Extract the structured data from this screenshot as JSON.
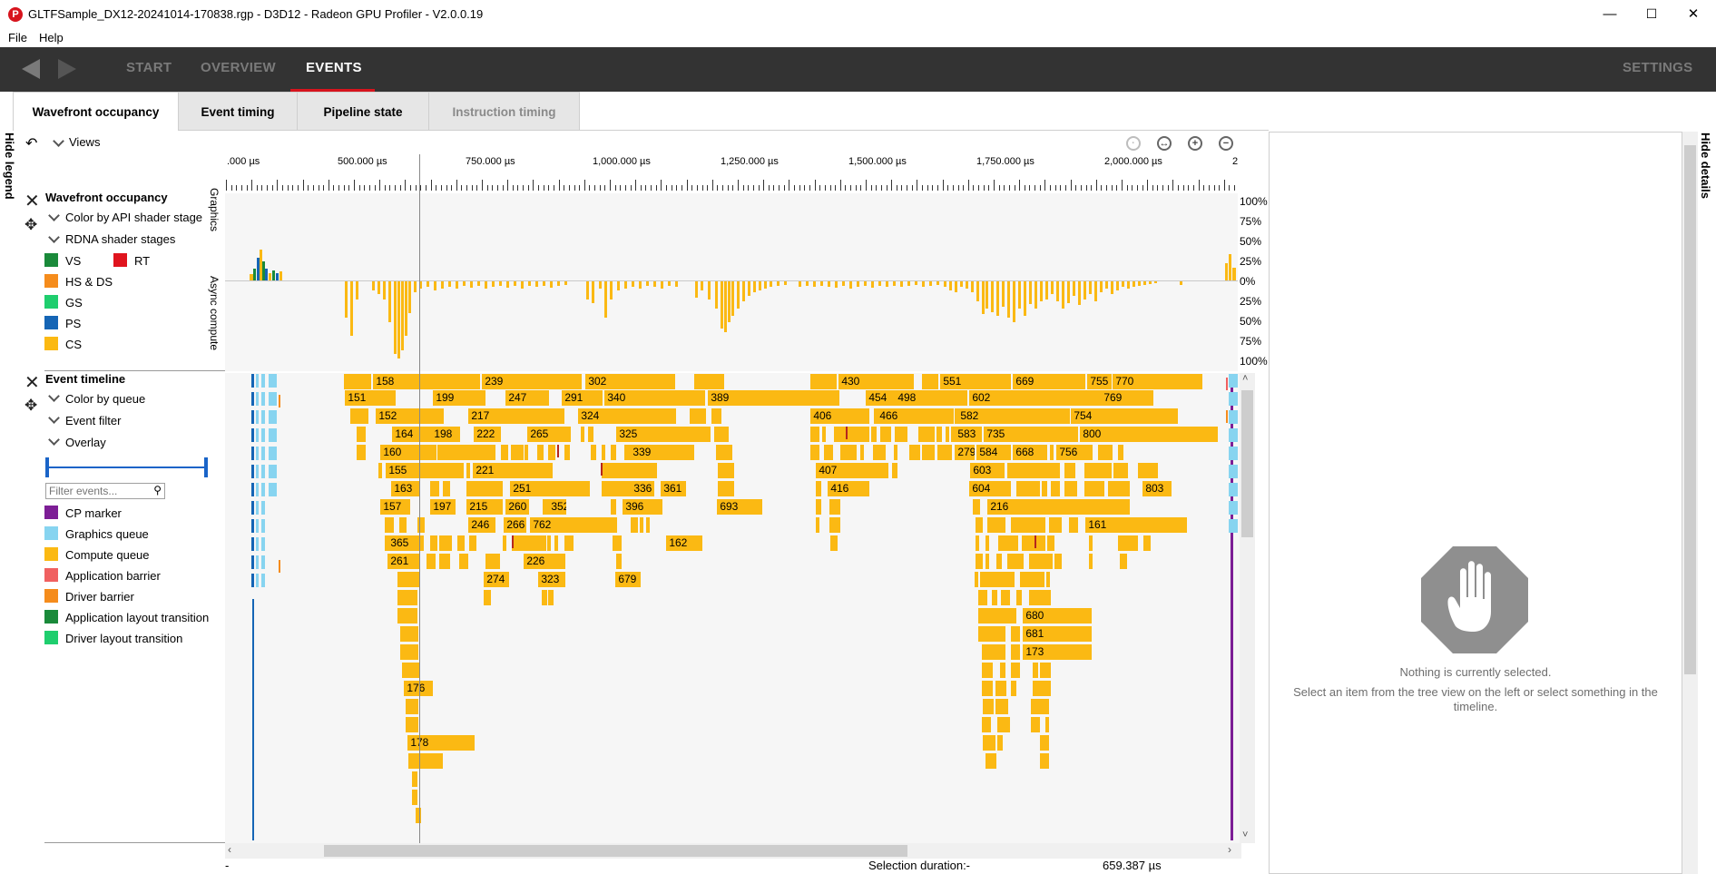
{
  "window": {
    "title": "GLTFSample_DX12-20241014-170838.rgp - D3D12 - Radeon GPU Profiler - V2.0.0.19",
    "icon_letter": "P",
    "minimize": "—",
    "maximize": "☐",
    "close": "✕"
  },
  "menu": {
    "file": "File",
    "help": "Help"
  },
  "nav": {
    "start": "START",
    "overview": "OVERVIEW",
    "events": "EVENTS",
    "settings": "SETTINGS"
  },
  "subtabs": {
    "wavefront": "Wavefront occupancy",
    "event_timing": "Event timing",
    "pipeline_state": "Pipeline state",
    "instruction_timing": "Instruction timing"
  },
  "sidebar": {
    "hide_legend": "Hide legend",
    "hide_details": "Hide details"
  },
  "views_label": "Views",
  "legend": {
    "wavefront_title": "Wavefront occupancy",
    "color_by_stage": "Color by API shader stage",
    "rdna_stages": "RDNA shader stages",
    "stages": [
      {
        "label": "VS",
        "color": "#1a8a3a"
      },
      {
        "label": "RT",
        "color": "#e0141e"
      },
      {
        "label": "HS & DS",
        "color": "#f58c1c"
      },
      {
        "label": "GS",
        "color": "#1fce6e"
      },
      {
        "label": "PS",
        "color": "#1565b5"
      },
      {
        "label": "CS",
        "color": "#fbb913"
      }
    ],
    "event_timeline_title": "Event timeline",
    "color_by_queue": "Color by queue",
    "event_filter": "Event filter",
    "overlay": "Overlay",
    "filter_placeholder": "Filter events...",
    "queues": [
      {
        "label": "CP marker",
        "color": "#7d1e96"
      },
      {
        "label": "Graphics queue",
        "color": "#87d4f0"
      },
      {
        "label": "Compute queue",
        "color": "#fbb913"
      },
      {
        "label": "Application barrier",
        "color": "#f06060"
      },
      {
        "label": "Driver barrier",
        "color": "#f58c1c"
      },
      {
        "label": "Application layout transition",
        "color": "#1a8a3a"
      },
      {
        "label": "Driver layout transition",
        "color": "#1fce6e"
      }
    ]
  },
  "chart": {
    "ticks": [
      ".000 µs",
      "500.000 µs",
      "750.000 µs",
      "1,000.000 µs",
      "1,250.000 µs",
      "1,500.000 µs",
      "1,750.000 µs",
      "2,000.000 µs",
      "2"
    ],
    "graphics_label": "Graphics",
    "async_label": "Async compute",
    "pct_labels": [
      "100%",
      "75%",
      "50%",
      "25%",
      "0%",
      "25%",
      "50%",
      "75%",
      "100%"
    ]
  },
  "events": [
    {
      "id": "158"
    },
    {
      "id": "239"
    },
    {
      "id": "302"
    },
    {
      "id": "430"
    },
    {
      "id": "551"
    },
    {
      "id": "669"
    },
    {
      "id": "755"
    },
    {
      "id": "770"
    },
    {
      "id": "151"
    },
    {
      "id": "199"
    },
    {
      "id": "247"
    },
    {
      "id": "291"
    },
    {
      "id": "340"
    },
    {
      "id": "389"
    },
    {
      "id": "454"
    },
    {
      "id": "498"
    },
    {
      "id": "602"
    },
    {
      "id": "769"
    },
    {
      "id": "152"
    },
    {
      "id": "217"
    },
    {
      "id": "324"
    },
    {
      "id": "406"
    },
    {
      "id": "466"
    },
    {
      "id": "582"
    },
    {
      "id": "754"
    },
    {
      "id": "164"
    },
    {
      "id": "198"
    },
    {
      "id": "222"
    },
    {
      "id": "265"
    },
    {
      "id": "325"
    },
    {
      "id": "583"
    },
    {
      "id": "735"
    },
    {
      "id": "800"
    },
    {
      "id": "160"
    },
    {
      "id": "339"
    },
    {
      "id": "584"
    },
    {
      "id": "668"
    },
    {
      "id": "756"
    },
    {
      "id": "155"
    },
    {
      "id": "221"
    },
    {
      "id": "407"
    },
    {
      "id": "603"
    },
    {
      "id": "163"
    },
    {
      "id": "251"
    },
    {
      "id": "336"
    },
    {
      "id": "361"
    },
    {
      "id": "416"
    },
    {
      "id": "604"
    },
    {
      "id": "803"
    },
    {
      "id": "157"
    },
    {
      "id": "197"
    },
    {
      "id": "215"
    },
    {
      "id": "260"
    },
    {
      "id": "279"
    },
    {
      "id": "352"
    },
    {
      "id": "396"
    },
    {
      "id": "693"
    },
    {
      "id": "216"
    },
    {
      "id": "246"
    },
    {
      "id": "266"
    },
    {
      "id": "762"
    },
    {
      "id": "161"
    },
    {
      "id": "365"
    },
    {
      "id": "162"
    },
    {
      "id": "261"
    },
    {
      "id": "226"
    },
    {
      "id": "274"
    },
    {
      "id": "323"
    },
    {
      "id": "679"
    },
    {
      "id": "680"
    },
    {
      "id": "681"
    },
    {
      "id": "173"
    },
    {
      "id": "176"
    },
    {
      "id": "178"
    }
  ],
  "details": {
    "nothing_selected": "Nothing is currently selected.",
    "hint": "Select an item from the tree view on the left or select something in the timeline."
  },
  "status": {
    "left": "-",
    "selection_label": "Selection duration:-",
    "duration": "659.387 µs"
  }
}
